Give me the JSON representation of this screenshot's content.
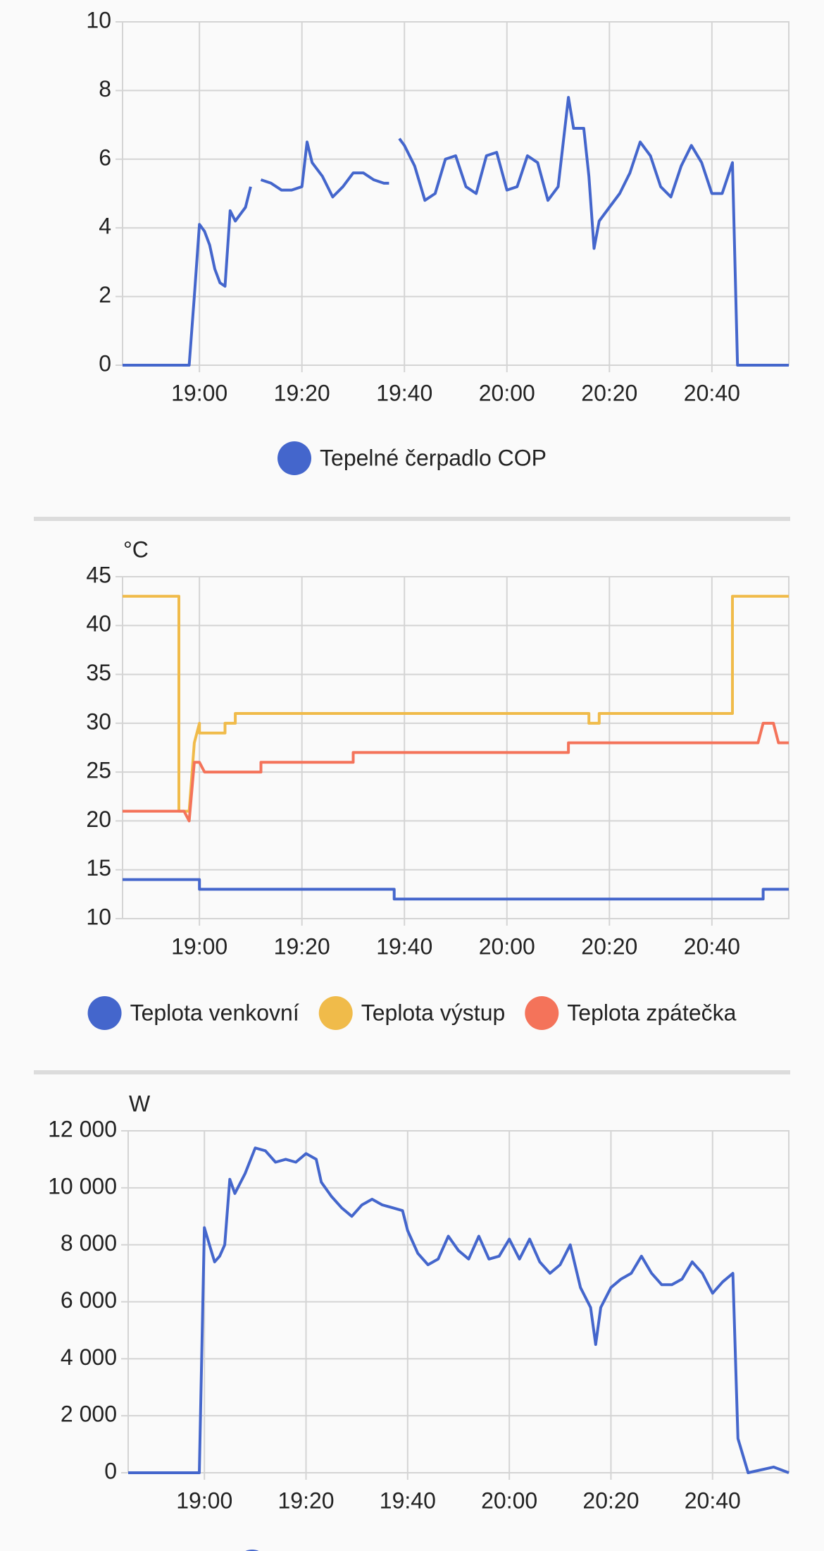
{
  "chart_data": [
    {
      "type": "line",
      "xlim": [
        "18:45",
        "20:55"
      ],
      "xticks": [
        "19:00",
        "19:20",
        "19:40",
        "20:00",
        "20:20",
        "20:40"
      ],
      "ylim": [
        0,
        10
      ],
      "yticks": [
        0,
        2,
        4,
        6,
        8,
        10
      ],
      "grid": true,
      "series": [
        {
          "name": "Tepelné čerpadlo COP",
          "color": "#4466cc",
          "x": [
            "18:45",
            "18:58",
            "18:59",
            "19:00",
            "19:01",
            "19:02",
            "19:03",
            "19:04",
            "19:05",
            "19:06",
            "19:07",
            "19:08",
            "19:09",
            "19:10",
            "19:11",
            "19:12",
            "19:14",
            "19:16",
            "19:18",
            "19:20",
            "19:21",
            "19:22",
            "19:24",
            "19:26",
            "19:28",
            "19:30",
            "19:32",
            "19:34",
            "19:36",
            "19:37",
            "19:38",
            "19:39",
            "19:40",
            "19:42",
            "19:44",
            "19:46",
            "19:48",
            "19:50",
            "19:52",
            "19:54",
            "19:56",
            "19:58",
            "20:00",
            "20:02",
            "20:04",
            "20:06",
            "20:08",
            "20:10",
            "20:12",
            "20:13",
            "20:15",
            "20:16",
            "20:17",
            "20:18",
            "20:20",
            "20:22",
            "20:24",
            "20:26",
            "20:28",
            "20:30",
            "20:32",
            "20:34",
            "20:36",
            "20:38",
            "20:40",
            "20:42",
            "20:44",
            "20:45",
            "20:55"
          ],
          "values": [
            0,
            0,
            2,
            4.1,
            3.9,
            3.5,
            2.8,
            2.4,
            2.3,
            4.5,
            4.2,
            4.4,
            4.6,
            5.2,
            null,
            5.4,
            5.3,
            5.1,
            5.1,
            5.2,
            6.5,
            5.9,
            5.5,
            4.9,
            5.2,
            5.6,
            5.6,
            5.4,
            5.3,
            5.3,
            null,
            6.6,
            6.4,
            5.8,
            4.8,
            5.0,
            6.0,
            6.1,
            5.2,
            5.0,
            6.1,
            6.2,
            5.1,
            5.2,
            6.1,
            5.9,
            4.8,
            5.2,
            7.8,
            6.9,
            6.9,
            5.5,
            3.4,
            4.2,
            4.6,
            5.0,
            5.6,
            6.5,
            6.1,
            5.2,
            4.9,
            5.8,
            6.4,
            5.9,
            5.0,
            5.0,
            5.9,
            0,
            0
          ]
        }
      ]
    },
    {
      "type": "line",
      "unit": "°C",
      "xlim": [
        "18:45",
        "20:55"
      ],
      "xticks": [
        "19:00",
        "19:20",
        "19:40",
        "20:00",
        "20:20",
        "20:40"
      ],
      "ylim": [
        10,
        45
      ],
      "yticks": [
        10,
        15,
        20,
        25,
        30,
        35,
        40,
        45
      ],
      "grid": true,
      "series": [
        {
          "name": "Teplota venkovní",
          "color": "#4466cc",
          "x": [
            "18:45",
            "19:00",
            "19:00",
            "19:38",
            "19:38",
            "20:50",
            "20:50",
            "20:55"
          ],
          "values": [
            14,
            14,
            13,
            13,
            12,
            12,
            13,
            13
          ]
        },
        {
          "name": "Teplota výstup",
          "color": "#f0bb4a",
          "x": [
            "18:45",
            "18:56",
            "18:56",
            "18:58",
            "18:59",
            "19:00",
            "19:00",
            "19:05",
            "19:05",
            "19:07",
            "19:07",
            "20:16",
            "20:16",
            "20:18",
            "20:18",
            "20:44",
            "20:44",
            "20:55"
          ],
          "values": [
            43,
            43,
            21,
            21,
            28,
            30,
            29,
            29,
            30,
            30,
            31,
            31,
            30,
            30,
            31,
            31,
            43,
            43
          ]
        },
        {
          "name": "Teplota zpátečka",
          "color": "#f4735a",
          "x": [
            "18:45",
            "18:57",
            "18:58",
            "18:59",
            "19:00",
            "19:01",
            "19:12",
            "19:12",
            "19:30",
            "19:30",
            "20:12",
            "20:12",
            "20:49",
            "20:50",
            "20:52",
            "20:53",
            "20:55"
          ],
          "values": [
            21,
            21,
            20,
            26,
            26,
            25,
            25,
            26,
            26,
            27,
            27,
            28,
            28,
            30,
            30,
            28,
            28
          ]
        }
      ]
    },
    {
      "type": "line",
      "unit": "W",
      "xlim": [
        "18:45",
        "20:55"
      ],
      "xticks": [
        "19:00",
        "19:20",
        "19:40",
        "20:00",
        "20:20",
        "20:40"
      ],
      "ylim": [
        0,
        12000
      ],
      "yticks": [
        0,
        {
          "value": 2000,
          "label": "2 000"
        },
        {
          "value": 4000,
          "label": "4 000"
        },
        {
          "value": 6000,
          "label": "6 000"
        },
        {
          "value": 8000,
          "label": "8 000"
        },
        {
          "value": 10000,
          "label": "10 000"
        },
        {
          "value": 12000,
          "label": "12 000"
        }
      ],
      "grid": true,
      "series": [
        {
          "color": "#4466cc",
          "x": [
            "18:45",
            "18:59",
            "19:00",
            "19:01",
            "19:02",
            "19:03",
            "19:04",
            "19:05",
            "19:06",
            "19:08",
            "19:10",
            "19:12",
            "19:14",
            "19:16",
            "19:18",
            "19:20",
            "19:22",
            "19:23",
            "19:25",
            "19:27",
            "19:29",
            "19:31",
            "19:33",
            "19:35",
            "19:37",
            "19:39",
            "19:40",
            "19:42",
            "19:44",
            "19:46",
            "19:48",
            "19:50",
            "19:52",
            "19:54",
            "19:56",
            "19:58",
            "20:00",
            "20:02",
            "20:04",
            "20:06",
            "20:08",
            "20:10",
            "20:12",
            "20:14",
            "20:16",
            "20:17",
            "20:18",
            "20:20",
            "20:22",
            "20:24",
            "20:26",
            "20:28",
            "20:30",
            "20:32",
            "20:34",
            "20:36",
            "20:38",
            "20:40",
            "20:42",
            "20:44",
            "20:45",
            "20:47",
            "20:52",
            "20:55"
          ],
          "values": [
            0,
            0,
            8600,
            8000,
            7400,
            7600,
            8000,
            10300,
            9800,
            10500,
            11400,
            11300,
            10900,
            11000,
            10900,
            11200,
            11000,
            10200,
            9700,
            9300,
            9000,
            9400,
            9600,
            9400,
            9300,
            9200,
            8500,
            7700,
            7300,
            7500,
            8300,
            7800,
            7500,
            8300,
            7500,
            7600,
            8200,
            7500,
            8200,
            7400,
            7000,
            7300,
            8000,
            6500,
            5800,
            4500,
            5800,
            6500,
            6800,
            7000,
            7600,
            7000,
            6600,
            6600,
            6800,
            7400,
            7000,
            6300,
            6700,
            7000,
            1200,
            0,
            200,
            0
          ]
        }
      ]
    }
  ]
}
